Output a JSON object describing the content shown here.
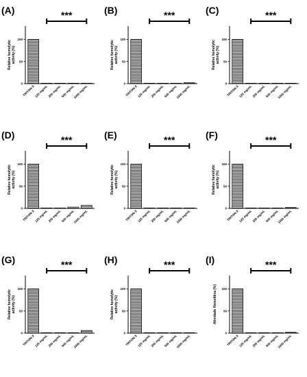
{
  "chart_data": [
    {
      "type": "bar",
      "panel": "(A)",
      "categories": [
        "TRITON-X",
        "125 mg/mL",
        "250 mg/mL",
        "500 mg/mL",
        "1000 mg/mL"
      ],
      "values": [
        100,
        1,
        1,
        1,
        1
      ],
      "ylabel_lines": [
        "Relative hemolytic",
        "activity (%)"
      ],
      "yticks": [
        0,
        50,
        100
      ],
      "ylim": [
        0,
        130
      ],
      "significance": "***"
    },
    {
      "type": "bar",
      "panel": "(B)",
      "categories": [
        "TRITON-X",
        "125 mg/mL",
        "250 mg/mL",
        "500 mg/mL",
        "1000 mg/mL"
      ],
      "values": [
        100,
        1,
        1,
        1,
        2
      ],
      "ylabel_lines": [
        "Relative hemolytic",
        "activity (%)"
      ],
      "yticks": [
        0,
        50,
        100
      ],
      "ylim": [
        0,
        130
      ],
      "significance": "***"
    },
    {
      "type": "bar",
      "panel": "(C)",
      "categories": [
        "TRITON-X",
        "125 mg/mL",
        "250 mg/mL",
        "500 mg/mL",
        "1000 mg/mL"
      ],
      "values": [
        100,
        1,
        1,
        1,
        1
      ],
      "ylabel_lines": [
        "Relative hemolytic",
        "activity (%)"
      ],
      "yticks": [
        0,
        50,
        100
      ],
      "ylim": [
        0,
        130
      ],
      "significance": "***"
    },
    {
      "type": "bar",
      "panel": "(D)",
      "categories": [
        "TRITON-X",
        "125 mg/mL",
        "250 mg/mL",
        "500 mg/mL",
        "1000 mg/mL"
      ],
      "values": [
        100,
        1,
        1,
        3,
        7
      ],
      "ylabel_lines": [
        "Relative hemolytic",
        "activity (%)"
      ],
      "yticks": [
        0,
        50,
        100
      ],
      "ylim": [
        0,
        130
      ],
      "significance": "***"
    },
    {
      "type": "bar",
      "panel": "(E)",
      "categories": [
        "TRITON-X",
        "125 mg/mL",
        "250 mg/mL",
        "500 mg/mL",
        "1000 mg/mL"
      ],
      "values": [
        100,
        1,
        1,
        1,
        1
      ],
      "ylabel_lines": [
        "Relative hemolytic",
        "activity (%)"
      ],
      "yticks": [
        0,
        50,
        100
      ],
      "ylim": [
        0,
        130
      ],
      "significance": "***"
    },
    {
      "type": "bar",
      "panel": "(F)",
      "categories": [
        "TRITON-X",
        "125 mg/mL",
        "250 mg/mL",
        "500 mg/mL",
        "1000 mg/mL"
      ],
      "values": [
        100,
        1,
        1,
        1,
        2
      ],
      "ylabel_lines": [
        "Relative hemolytic",
        "activity (%)"
      ],
      "yticks": [
        0,
        50,
        100
      ],
      "ylim": [
        0,
        130
      ],
      "significance": "***"
    },
    {
      "type": "bar",
      "panel": "(G)",
      "categories": [
        "TRITON-X",
        "125 mg/mL",
        "250 mg/mL",
        "500 mg/mL",
        "1000 mg/mL"
      ],
      "values": [
        100,
        1,
        1,
        1,
        6
      ],
      "ylabel_lines": [
        "Relative hemolytic",
        "activity (%)"
      ],
      "yticks": [
        0,
        50,
        100
      ],
      "ylim": [
        0,
        130
      ],
      "significance": "***"
    },
    {
      "type": "bar",
      "panel": "(H)",
      "categories": [
        "TRITON-X",
        "125 mg/mL",
        "250 mg/mL",
        "500 mg/mL",
        "1000 mg/mL"
      ],
      "values": [
        100,
        1,
        1,
        1,
        1
      ],
      "ylabel_lines": [
        "Relative hemolytic",
        "activity (%)"
      ],
      "yticks": [
        0,
        50,
        100
      ],
      "ylim": [
        0,
        130
      ],
      "significance": "***"
    },
    {
      "type": "bar",
      "panel": "(I)",
      "categories": [
        "TRITON-X",
        "125 mg/mL",
        "250 mg/mL",
        "500 mg/mL",
        "1000 mg/mL"
      ],
      "values": [
        100,
        1,
        1,
        1,
        2
      ],
      "ylabel_lines": [
        "Atividade Hemolítica (%)"
      ],
      "yticks": [
        0,
        50,
        100
      ],
      "ylim": [
        0,
        130
      ],
      "significance": "***"
    }
  ]
}
